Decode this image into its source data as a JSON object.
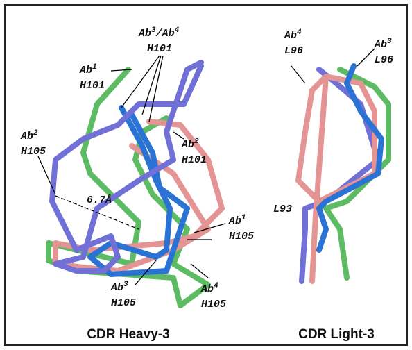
{
  "labels": [
    {
      "line1": [
        "Ab",
        "3",
        "/Ab",
        "4"
      ],
      "line2": "H101"
    },
    {
      "line1": [
        "Ab",
        "1"
      ],
      "line2": "H101"
    },
    {
      "line1": [
        "Ab",
        "2"
      ],
      "line2": "H105"
    },
    {
      "line1": [
        "Ab",
        "2"
      ],
      "line2": "H101"
    },
    {
      "line1": [
        "Ab",
        "1"
      ],
      "line2": "H105"
    },
    {
      "line1": [
        "Ab",
        "3"
      ],
      "line2": "H105"
    },
    {
      "line1": [
        "Ab",
        "4"
      ],
      "line2": "H105"
    },
    {
      "line1": [
        "Ab",
        "4"
      ],
      "line2": "L96"
    },
    {
      "line1": [
        "Ab",
        "3"
      ],
      "line2": "L96"
    }
  ],
  "distance": "6.7Å",
  "residue_l93": "L93",
  "captions": [
    "CDR Heavy-3",
    "CDR Light-3"
  ]
}
